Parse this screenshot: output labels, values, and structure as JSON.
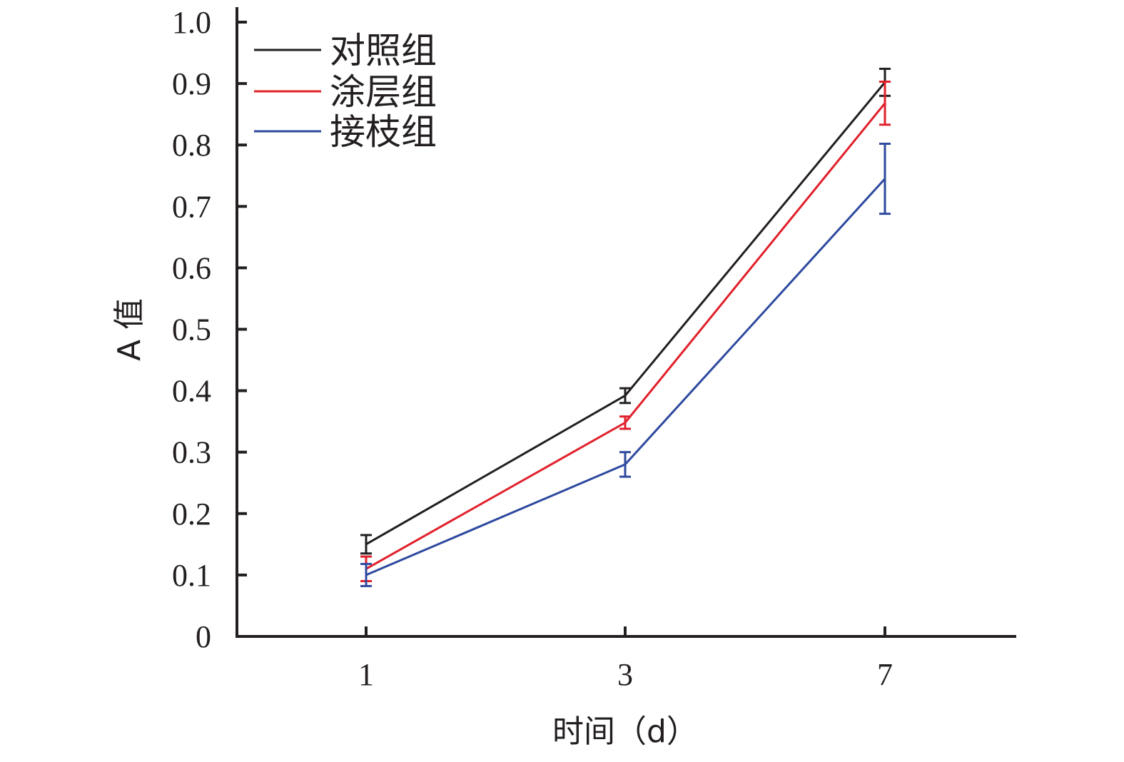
{
  "chart_data": {
    "type": "line",
    "title": "",
    "xlabel": "时间（d）",
    "ylabel": "A 值",
    "categories": [
      "1",
      "3",
      "7"
    ],
    "ylim": [
      0,
      1.0
    ],
    "yticks": [
      0,
      0.1,
      0.2,
      0.3,
      0.4,
      0.5,
      0.6,
      0.7,
      0.8,
      0.9,
      1.0
    ],
    "ytick_labels": [
      "0",
      "0.1",
      "0.2",
      "0.3",
      "0.4",
      "0.5",
      "0.6",
      "0.7",
      "0.8",
      "0.9",
      "1.0"
    ],
    "grid": false,
    "legend_position": "top-left",
    "series": [
      {
        "name": "对照组",
        "color": "#231f20",
        "values": [
          0.15,
          0.392,
          0.902
        ],
        "errors": [
          0.015,
          0.012,
          0.022
        ]
      },
      {
        "name": "涂层组",
        "color": "#e0202b",
        "values": [
          0.11,
          0.348,
          0.868
        ],
        "errors": [
          0.02,
          0.01,
          0.035
        ]
      },
      {
        "name": "接枝组",
        "color": "#2e4a9e",
        "values": [
          0.1,
          0.28,
          0.745
        ],
        "errors": [
          0.018,
          0.02,
          0.057
        ]
      }
    ]
  }
}
